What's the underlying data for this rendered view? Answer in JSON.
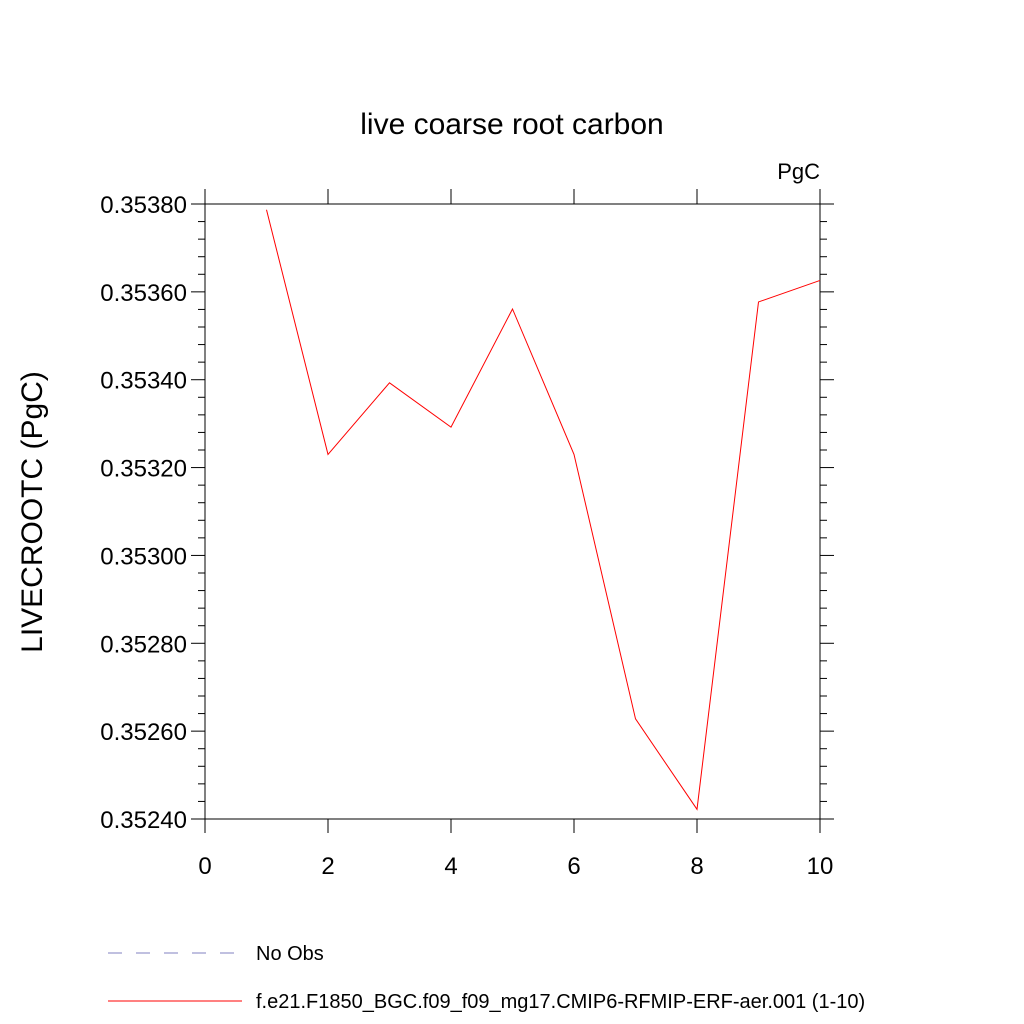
{
  "chart_data": {
    "type": "line",
    "title": "live coarse root carbon",
    "units": "PgC",
    "xlabel": "",
    "ylabel": "LIVECROOTC  (PgC)",
    "xlim": [
      0,
      10
    ],
    "ylim": [
      0.3524,
      0.3538
    ],
    "x_ticks": [
      0,
      2,
      4,
      6,
      8,
      10
    ],
    "x_tick_labels": [
      "0",
      "2",
      "4",
      "6",
      "8",
      "10"
    ],
    "y_ticks": [
      0.3524,
      0.3526,
      0.3528,
      0.353,
      0.3532,
      0.3534,
      0.3536,
      0.3538
    ],
    "y_tick_labels": [
      "0.35240",
      "0.35260",
      "0.35280",
      "0.35300",
      "0.35320",
      "0.35340",
      "0.35360",
      "0.35380"
    ],
    "grid": false,
    "legend_position": "bottom",
    "series": [
      {
        "name": "f.e21.F1850_BGC.f09_f09_mg17.CMIP6-RFMIP-ERF-aer.001 (1-10)",
        "color": "#ff0000",
        "style": "solid",
        "x": [
          1,
          2,
          3,
          4,
          5,
          6,
          7,
          8,
          9,
          10
        ],
        "y": [
          0.353787,
          0.35323,
          0.353393,
          0.353292,
          0.353561,
          0.35323,
          0.352628,
          0.352422,
          0.353577,
          0.353626
        ]
      }
    ],
    "legend": [
      {
        "label": "No Obs",
        "color": "#8080c0",
        "style": "dashed"
      },
      {
        "label": "f.e21.F1850_BGC.f09_f09_mg17.CMIP6-RFMIP-ERF-aer.001 (1-10)",
        "color": "#ff0000",
        "style": "solid"
      }
    ]
  }
}
